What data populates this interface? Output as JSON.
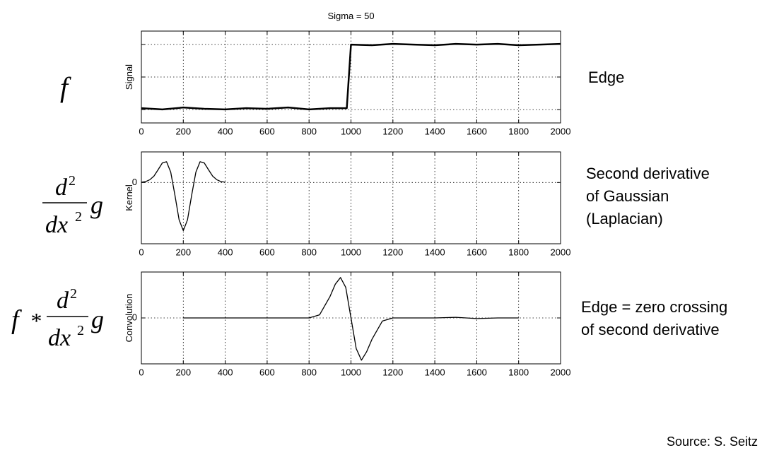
{
  "chart_data": [
    {
      "type": "line",
      "title": "Sigma = 50",
      "ylabel": "Signal",
      "x": [
        0,
        100,
        200,
        300,
        400,
        500,
        600,
        700,
        800,
        900,
        980,
        1000,
        1100,
        1200,
        1300,
        1400,
        1500,
        1600,
        1700,
        1800,
        1900,
        2000
      ],
      "series": [
        {
          "color": "#000000",
          "values": [
            0.01,
            -0.01,
            0.02,
            0,
            -0.01,
            0.01,
            0,
            0.02,
            -0.01,
            0.01,
            0.01,
            1,
            0.99,
            1.01,
            1,
            0.99,
            1.01,
            1,
            1.01,
            0.99,
            1,
            1.01
          ]
        }
      ],
      "xlim": [
        0,
        2000
      ],
      "ylim": [
        -0.22,
        1.21
      ],
      "xticks": [
        0,
        200,
        400,
        600,
        800,
        1000,
        1200,
        1400,
        1600,
        1800,
        2000
      ],
      "grid": true
    },
    {
      "type": "line",
      "ylabel": "Kernel",
      "x": [
        0,
        20,
        40,
        60,
        80,
        100,
        120,
        140,
        160,
        180,
        200,
        220,
        240,
        260,
        280,
        300,
        320,
        340,
        360,
        380,
        400
      ],
      "series": [
        {
          "color": "#000000",
          "values": [
            0.01,
            0.03,
            0.09,
            0.21,
            0.42,
            0.64,
            0.68,
            0.34,
            -0.41,
            -1.22,
            -1.57,
            -1.22,
            -0.41,
            0.34,
            0.68,
            0.64,
            0.42,
            0.21,
            0.09,
            0.03,
            0.01
          ]
        }
      ],
      "xlim": [
        0,
        2000
      ],
      "ylim": [
        -2,
        1
      ],
      "xticks": [
        0,
        200,
        400,
        600,
        800,
        1000,
        1200,
        1400,
        1600,
        1800,
        2000
      ],
      "yticks": [
        0
      ],
      "grid": true
    },
    {
      "type": "line",
      "ylabel": "Convolution",
      "x": [
        200,
        400,
        600,
        800,
        850,
        900,
        925,
        950,
        975,
        1000,
        1025,
        1050,
        1075,
        1100,
        1150,
        1200,
        1400,
        1500,
        1600,
        1700,
        1800
      ],
      "series": [
        {
          "color": "#000000",
          "values": [
            0,
            0,
            0,
            0,
            0.1,
            0.7,
            1.1,
            1.32,
            1.0,
            0,
            -1.0,
            -1.38,
            -1.1,
            -0.7,
            -0.1,
            0,
            0,
            0.02,
            -0.02,
            0,
            0
          ]
        }
      ],
      "xlim": [
        0,
        2000
      ],
      "ylim": [
        -1.5,
        1.5
      ],
      "xticks": [
        0,
        200,
        400,
        600,
        800,
        1000,
        1200,
        1400,
        1600,
        1800,
        2000
      ],
      "yticks": [
        0
      ],
      "grid": true
    }
  ],
  "formula_1": "f",
  "formula_2": {
    "numerator": "d",
    "num_exp": "2",
    "denominator": "dx",
    "den_exp": "2",
    "operand": "g"
  },
  "formula_3": {
    "lhs": "f",
    "operator": "*",
    "numerator": "d",
    "num_exp": "2",
    "denominator": "dx",
    "den_exp": "2",
    "operand": "g"
  },
  "notes": [
    [
      "Edge"
    ],
    [
      "Second derivative",
      "of Gaussian",
      "(Laplacian)"
    ],
    [
      "Edge = zero crossing",
      "of second derivative"
    ]
  ],
  "source": "Source: S. Seitz"
}
